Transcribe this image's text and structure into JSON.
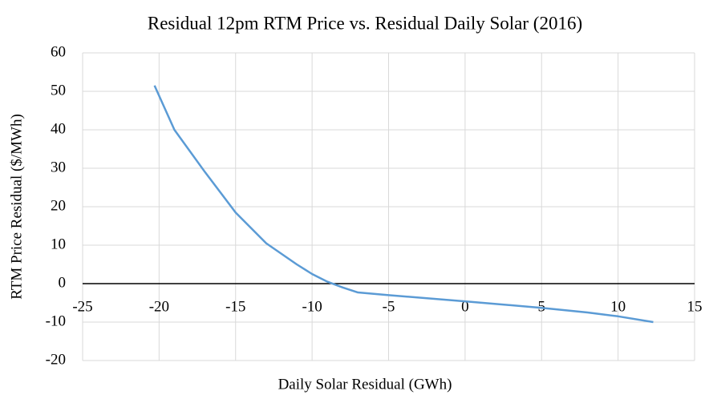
{
  "chart_data": {
    "type": "line",
    "title": "Residual 12pm RTM Price vs. Residual Daily Solar (2016)",
    "x_label": "Daily Solar Residual (GWh)",
    "y_label": "RTM Price Residual ($/MWh)",
    "x": [
      -20.3,
      -19,
      -17,
      -15,
      -13,
      -11,
      -10,
      -9,
      -8,
      -7,
      -5,
      0,
      5,
      8,
      10,
      12.3
    ],
    "series": [
      {
        "name": "RTM Price Residual",
        "color": "#5b9bd5",
        "values": [
          51.5,
          40,
          29,
          18.5,
          10.5,
          5,
          2.5,
          0.5,
          -1,
          -2.3,
          -3,
          -4.6,
          -6.3,
          -7.5,
          -8.5,
          -10
        ]
      }
    ],
    "xlim": [
      -25,
      15
    ],
    "xticks": [
      -25,
      -20,
      -15,
      -10,
      -5,
      0,
      5,
      10,
      15
    ],
    "ylim": [
      -20,
      60
    ],
    "yticks": [
      -20,
      -10,
      0,
      10,
      20,
      30,
      40,
      50,
      60
    ],
    "grid": true
  }
}
